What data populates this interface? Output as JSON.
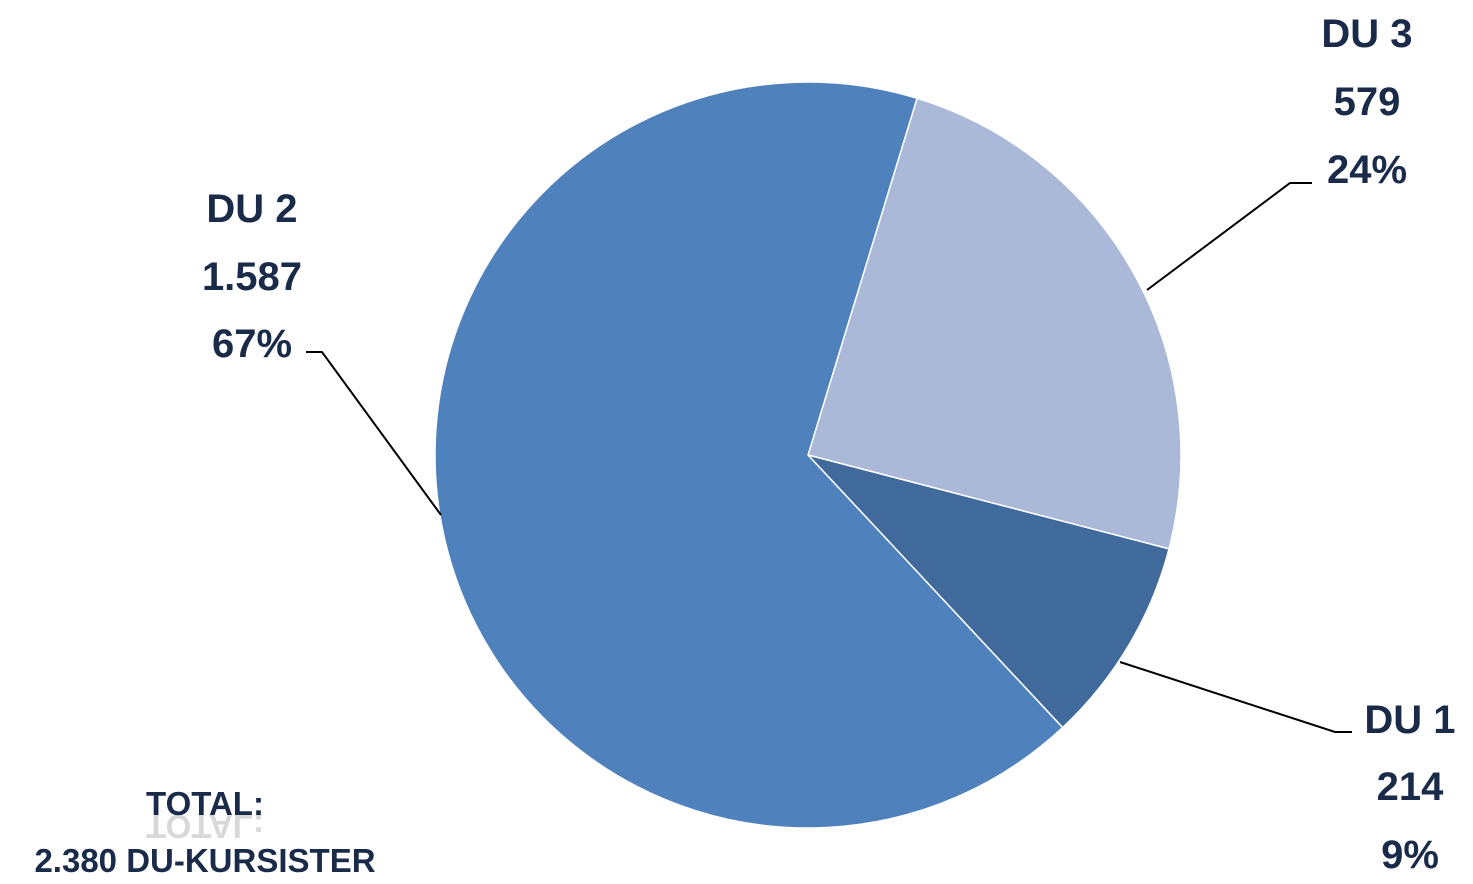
{
  "chart_data": {
    "type": "pie",
    "categories": [
      "DU 1",
      "DU 2",
      "DU 3"
    ],
    "values": [
      214,
      1587,
      579
    ],
    "value_labels": [
      "214",
      "1.587",
      "579"
    ],
    "percent_labels": [
      "9%",
      "67%",
      "24%"
    ],
    "colors": [
      "#406a9c",
      "#4f81bd",
      "#aab9d7"
    ],
    "annotation": {
      "line1": "TOTAL:",
      "line2": "2.380 DU-KURSISTER"
    }
  }
}
